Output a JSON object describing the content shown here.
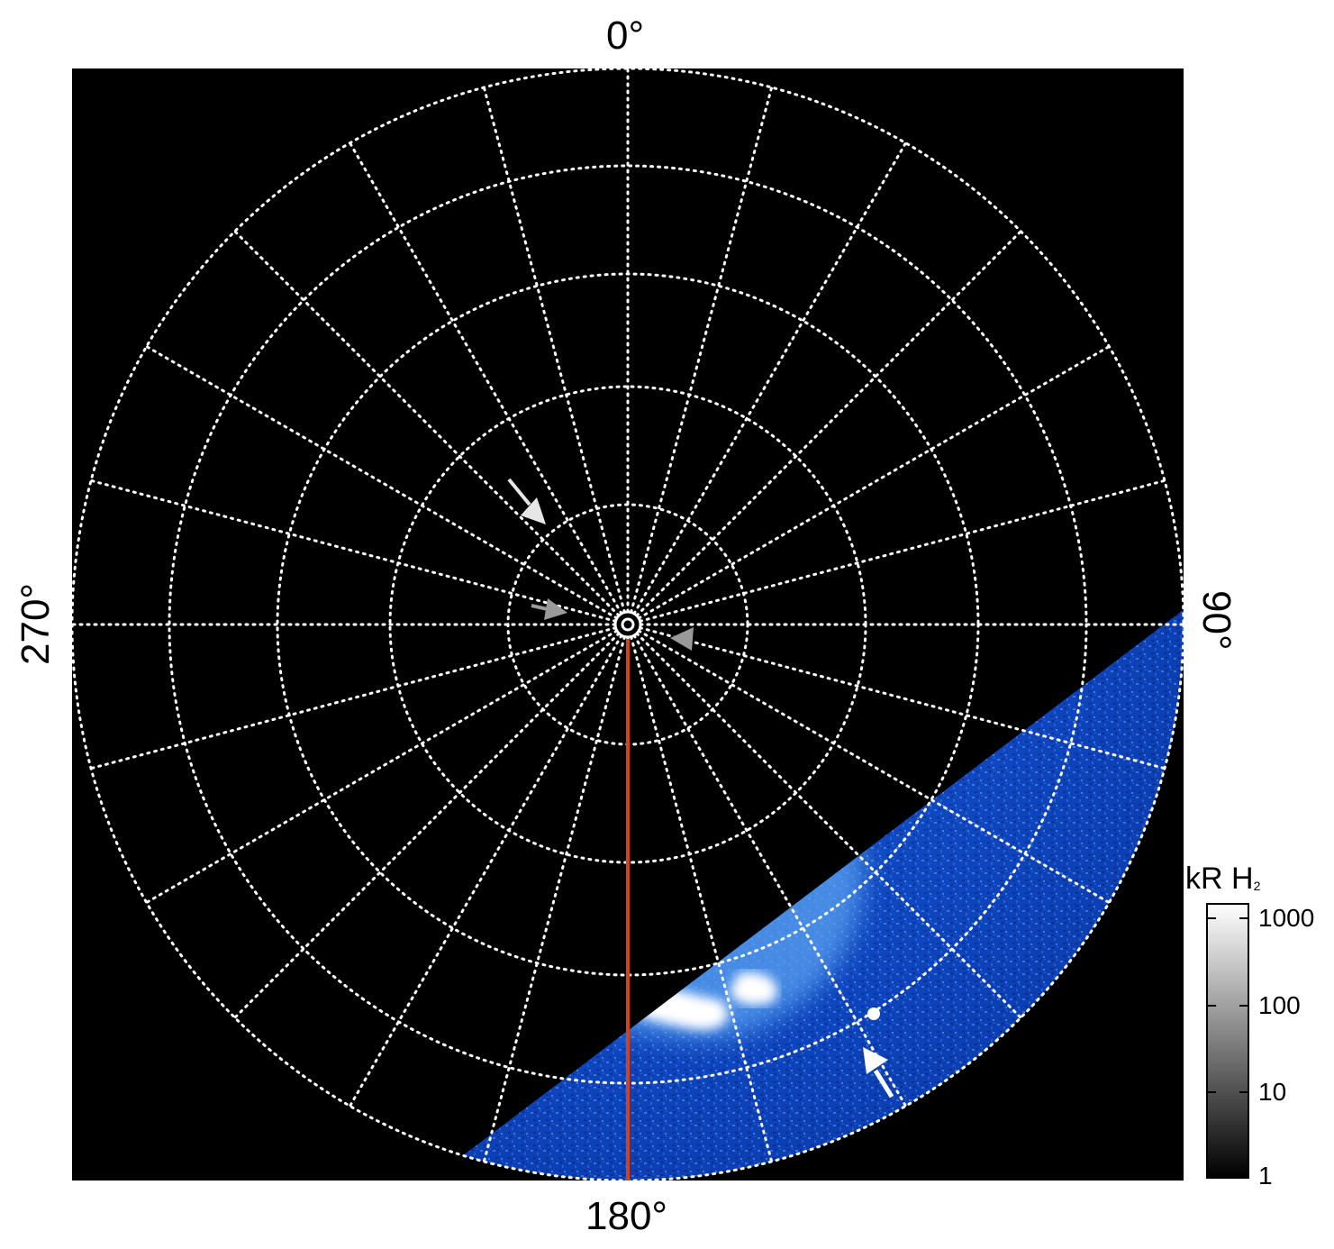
{
  "figure": {
    "compass": {
      "top": "0°",
      "right": "90°",
      "bottom": "180°",
      "left": "270°"
    },
    "colorbar": {
      "title": "kR H",
      "title_sub": "2",
      "ticks": [
        "1000",
        "100",
        "10",
        "1"
      ],
      "scale": "log",
      "range": [
        1,
        1000
      ]
    },
    "colors": {
      "background": "#000000",
      "grid": "#ffffff",
      "meridian_line": "#d6401a",
      "emission_low": "#0b3fbf",
      "emission_mid": "#3d8ff2",
      "emission_high": "#ffffff"
    },
    "grid": {
      "style": "dotted",
      "meridians": 24,
      "latitude_circles": 5
    },
    "arrows": [
      {
        "color": "#e6e6e6"
      },
      {
        "color": "#9a9a9a"
      },
      {
        "color": "#9a9a9a"
      },
      {
        "color": "#ffffff"
      }
    ]
  }
}
